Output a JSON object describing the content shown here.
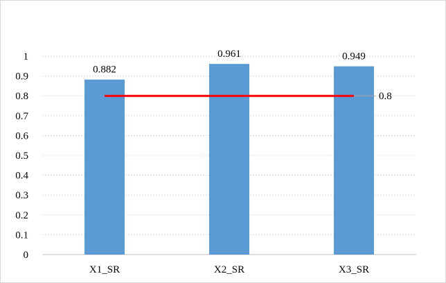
{
  "chart_data": {
    "type": "bar",
    "categories": [
      "X1_SR",
      "X2_SR",
      "X3_SR"
    ],
    "series": [
      {
        "values": [
          0.882,
          0.961,
          0.949
        ],
        "color": "#5b9bd5"
      }
    ],
    "data_labels": [
      "0.882",
      "0.961",
      "0.949"
    ],
    "reference_line": {
      "value": 0.8,
      "label": "0.8",
      "color": "#ff0000"
    },
    "yticks": [
      "0",
      "0.1",
      "0.2",
      "0.3",
      "0.4",
      "0.5",
      "0.6",
      "0.7",
      "0.8",
      "0.9",
      "1"
    ],
    "ylim": [
      0,
      1
    ],
    "grid": true,
    "legend": "none",
    "title": "",
    "xlabel": "",
    "ylabel": ""
  }
}
